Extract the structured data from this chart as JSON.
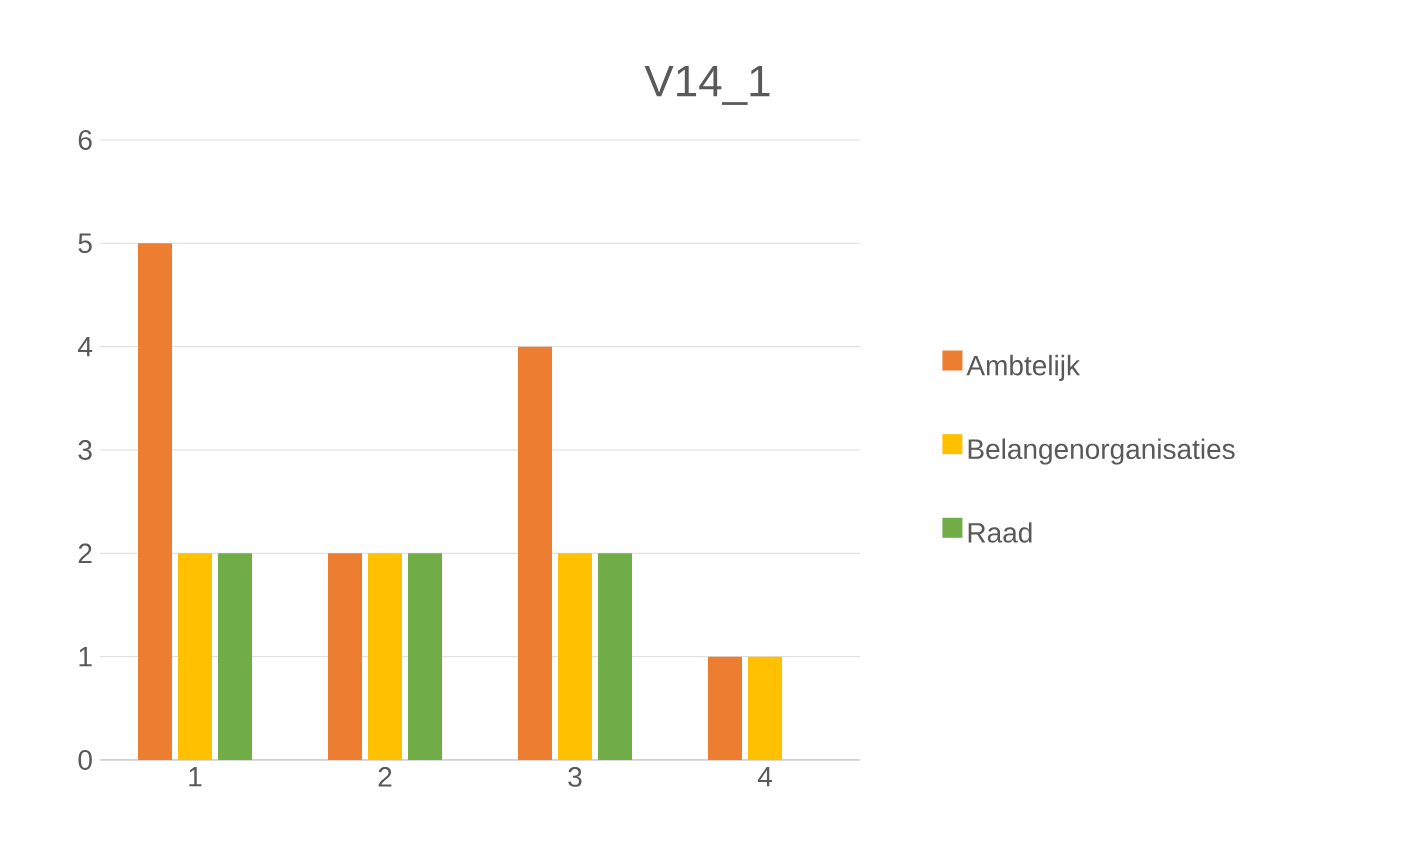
{
  "chart_data": {
    "type": "bar",
    "title": "V14_1",
    "categories": [
      "1",
      "2",
      "3",
      "4"
    ],
    "series": [
      {
        "name": "Ambtelijk",
        "color": "#ed7d31",
        "values": [
          5,
          2,
          4,
          1
        ]
      },
      {
        "name": "Belangenorganisaties",
        "color": "#ffc000",
        "values": [
          2,
          2,
          2,
          1
        ]
      },
      {
        "name": "Raad",
        "color": "#70ad47",
        "values": [
          2,
          2,
          2,
          0
        ]
      }
    ],
    "ylim": [
      0,
      6
    ],
    "yticks": [
      0,
      1,
      2,
      3,
      4,
      5,
      6
    ],
    "grid": "y",
    "legend": "right"
  }
}
